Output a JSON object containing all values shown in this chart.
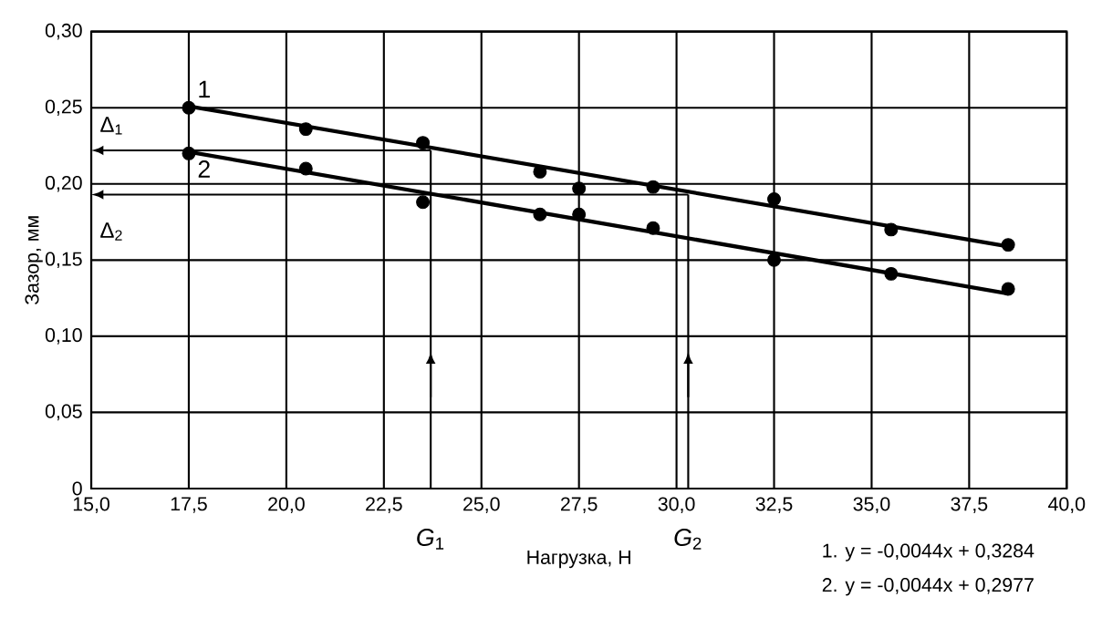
{
  "chart_data": {
    "type": "scatter",
    "xlabel": "Нагрузка, Н",
    "ylabel": "Зазор, мм",
    "xlim": [
      15,
      40
    ],
    "ylim": [
      0,
      0.3
    ],
    "xticks": [
      {
        "value": 15,
        "label": "15,0"
      },
      {
        "value": 17.5,
        "label": "17,5"
      },
      {
        "value": 20,
        "label": "20,0"
      },
      {
        "value": 22.5,
        "label": "22,5"
      },
      {
        "value": 25,
        "label": "25,0"
      },
      {
        "value": 27.5,
        "label": "27,5"
      },
      {
        "value": 30,
        "label": "30,0"
      },
      {
        "value": 32.5,
        "label": "32,5"
      },
      {
        "value": 35,
        "label": "35,0"
      },
      {
        "value": 37.5,
        "label": "37,5"
      },
      {
        "value": 40,
        "label": "40,0"
      }
    ],
    "yticks": [
      0,
      {
        "value": 0.05,
        "label": "0,05"
      },
      {
        "value": 0.1,
        "label": "0,10"
      },
      {
        "value": 0.15,
        "label": "0,15"
      },
      {
        "value": 0.2,
        "label": "0,20"
      },
      {
        "value": 0.25,
        "label": "0,25"
      },
      {
        "value": 0.3,
        "label": "0,30"
      }
    ],
    "grid": true,
    "line_style": "solid",
    "marker": "circle",
    "series": [
      {
        "color": "#000000",
        "x": [
          17.5,
          20.5,
          23.5,
          26.5,
          27.5,
          29.4,
          32.5,
          35.5,
          38.5
        ],
        "values": [
          0.25,
          0.236,
          0.227,
          0.208,
          0.197,
          0.198,
          0.19,
          0.17,
          0.16
        ]
      },
      {
        "color": "#000000",
        "x": [
          17.5,
          20.5,
          23.5,
          26.5,
          27.5,
          29.4,
          32.5,
          35.5,
          38.5
        ],
        "values": [
          0.22,
          0.21,
          0.188,
          0.18,
          0.18,
          0.171,
          0.15,
          0.141,
          0.131
        ]
      },
      {
        "type": "line",
        "marker": "none",
        "name": "1",
        "color": "#000000",
        "x": [
          17.5,
          38.5
        ],
        "values": [
          0.251,
          0.159
        ]
      },
      {
        "type": "line",
        "marker": "none",
        "name": "2",
        "color": "#000000",
        "x": [
          17.5,
          38.5
        ],
        "values": [
          0.221,
          0.128
        ]
      }
    ],
    "ref_lines": [
      {
        "axis": "y",
        "value": 0.222,
        "label": "Δ$_{1}$"
      },
      {
        "axis": "y",
        "value": 0.193,
        "label": "Δ$_{2}$"
      },
      {
        "axis": "x",
        "value": 23.7,
        "label": "*G*$_{1}$"
      },
      {
        "axis": "x",
        "value": 30.3,
        "label": "*G*$_{2}$"
      }
    ],
    "annotations": [
      "1. y = -0,0044x + 0,3284",
      "2. y = -0,0044x + 0,2977"
    ]
  }
}
